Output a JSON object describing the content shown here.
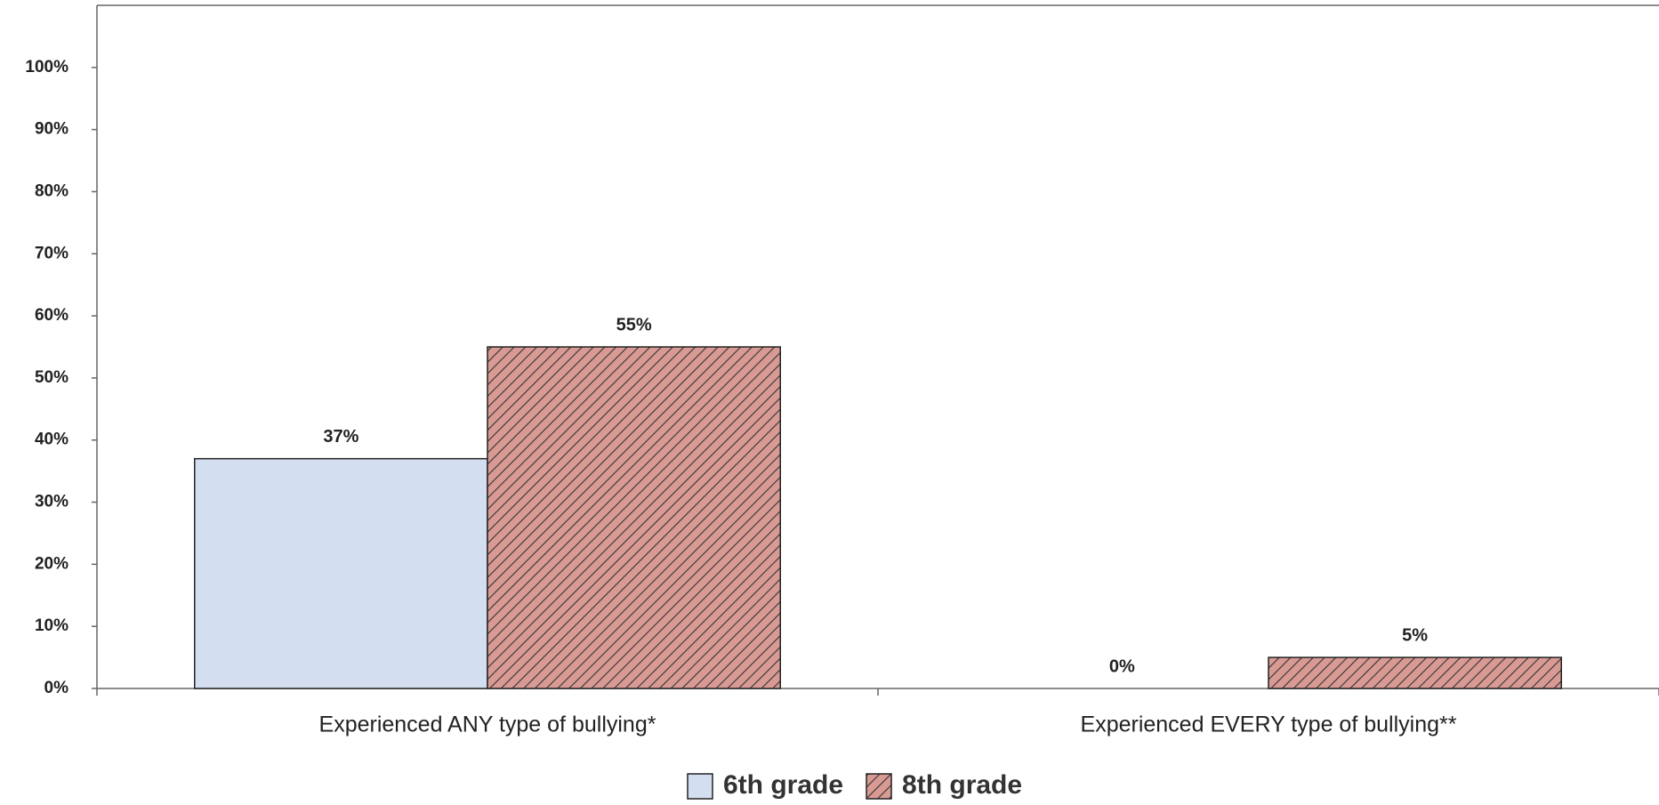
{
  "chart_data": {
    "type": "bar",
    "categories": [
      "Experienced ANY type of bullying*",
      "Experienced EVERY type of bullying**"
    ],
    "series": [
      {
        "name": "6th grade",
        "color": "#d3dff0",
        "values": [
          37,
          0
        ],
        "value_labels": [
          "37%",
          "0%"
        ]
      },
      {
        "name": "8th grade",
        "color": "#d99a94",
        "hatch": true,
        "values": [
          55,
          5
        ],
        "value_labels": [
          "55%",
          "5%"
        ]
      }
    ],
    "ylim": [
      0,
      110
    ],
    "yticks": [
      {
        "value": 0,
        "label": "0%"
      },
      {
        "value": 10,
        "label": "10%"
      },
      {
        "value": 20,
        "label": "20%"
      },
      {
        "value": 30,
        "label": "30%"
      },
      {
        "value": 40,
        "label": "40%"
      },
      {
        "value": 50,
        "label": "50%"
      },
      {
        "value": 60,
        "label": "60%"
      },
      {
        "value": 70,
        "label": "70%"
      },
      {
        "value": 80,
        "label": "80%"
      },
      {
        "value": 90,
        "label": "90%"
      },
      {
        "value": 100,
        "label": "100%"
      }
    ],
    "grid": false,
    "legend": "bottom"
  }
}
